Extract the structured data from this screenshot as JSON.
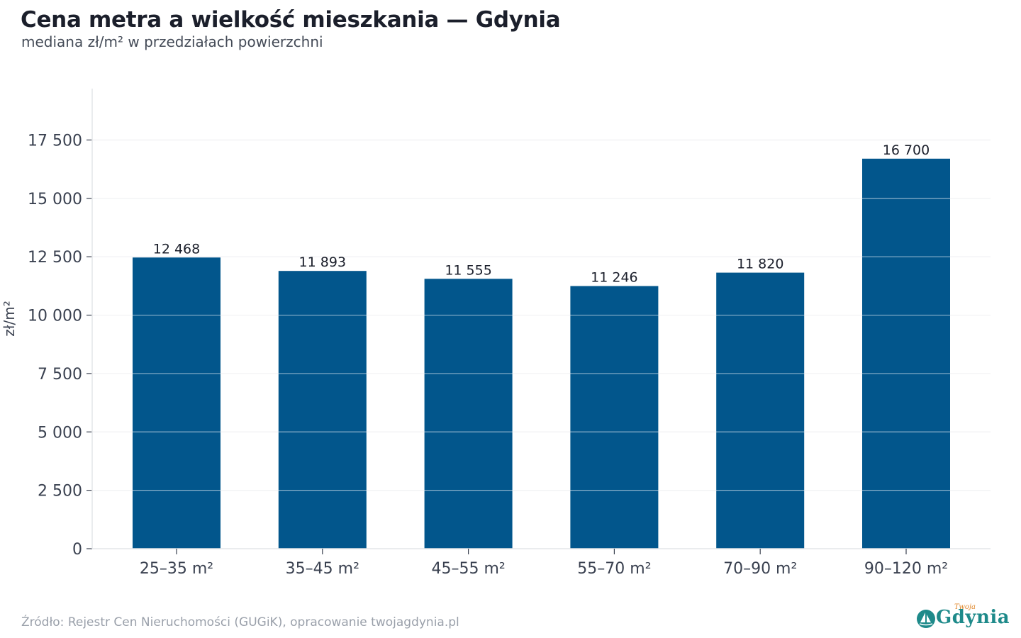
{
  "title": "Cena metra a wielkość mieszkania — Gdynia",
  "subtitle": "mediana zł/m² w przedziałach powierzchni",
  "source": "Źródło: Rejestr Cen Nieruchomości (GUGiK), opracowanie twojagdynia.pl",
  "logo": {
    "text": "Gdynia",
    "small_text": "Twoja",
    "icon": "sailboat-icon"
  },
  "colors": {
    "bar": "#02568c",
    "grid": "#e3e5e8",
    "logo": "#1e8a8a",
    "logo_accent": "#e0892e"
  },
  "chart_data": {
    "type": "bar",
    "title": "Cena metra a wielkość mieszkania — Gdynia",
    "subtitle": "mediana zł/m² w przedziałach powierzchni",
    "xlabel": "",
    "ylabel": "zł/m²",
    "categories": [
      "25–35 m²",
      "35–45 m²",
      "45–55 m²",
      "55–70 m²",
      "70–90 m²",
      "90–120 m²"
    ],
    "values": [
      12468,
      11893,
      11555,
      11246,
      11820,
      16700
    ],
    "value_labels": [
      "12 468",
      "11 893",
      "11 555",
      "11 246",
      "11 820",
      "16 700"
    ],
    "ylim": [
      0,
      19700
    ],
    "yticks": [
      0,
      2500,
      5000,
      7500,
      10000,
      12500,
      15000,
      17500
    ],
    "ytick_labels": [
      "0",
      "2 500",
      "5 000",
      "7 500",
      "10 000",
      "12 500",
      "15 000",
      "17 500"
    ],
    "grid": true,
    "legend": "none"
  }
}
